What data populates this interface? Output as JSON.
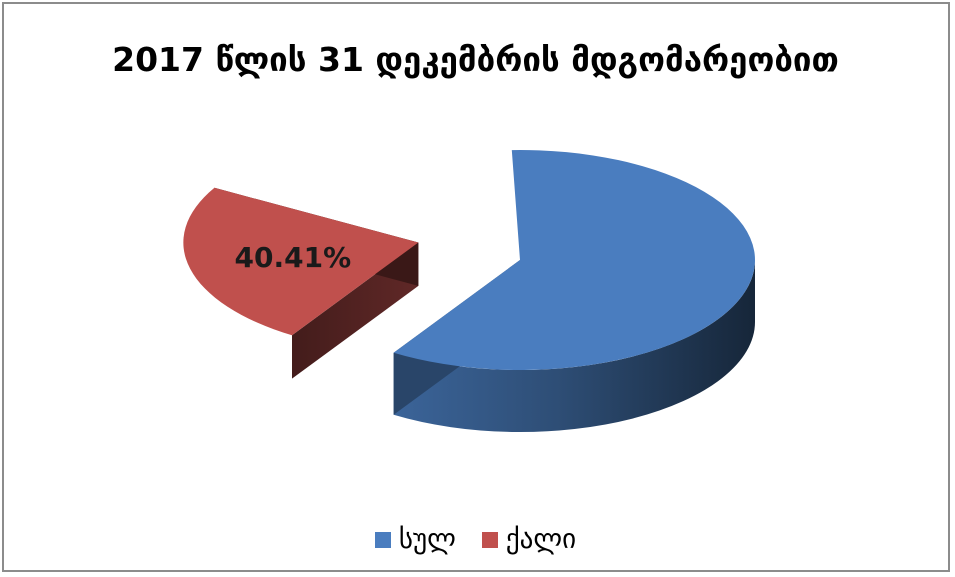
{
  "chart_data": {
    "type": "pie",
    "title": "2017 წლის 31 დეკემბრის მდგომარეობით",
    "categories": [
      "სულ",
      "ქალი"
    ],
    "values": [
      100.0,
      40.41
    ],
    "data_labels": [
      "",
      "40.41%"
    ],
    "colors": [
      "#4a7dbf",
      "#c0504d"
    ],
    "legend_position": "bottom",
    "exploded_slice": "ქალი",
    "style": "3d"
  }
}
